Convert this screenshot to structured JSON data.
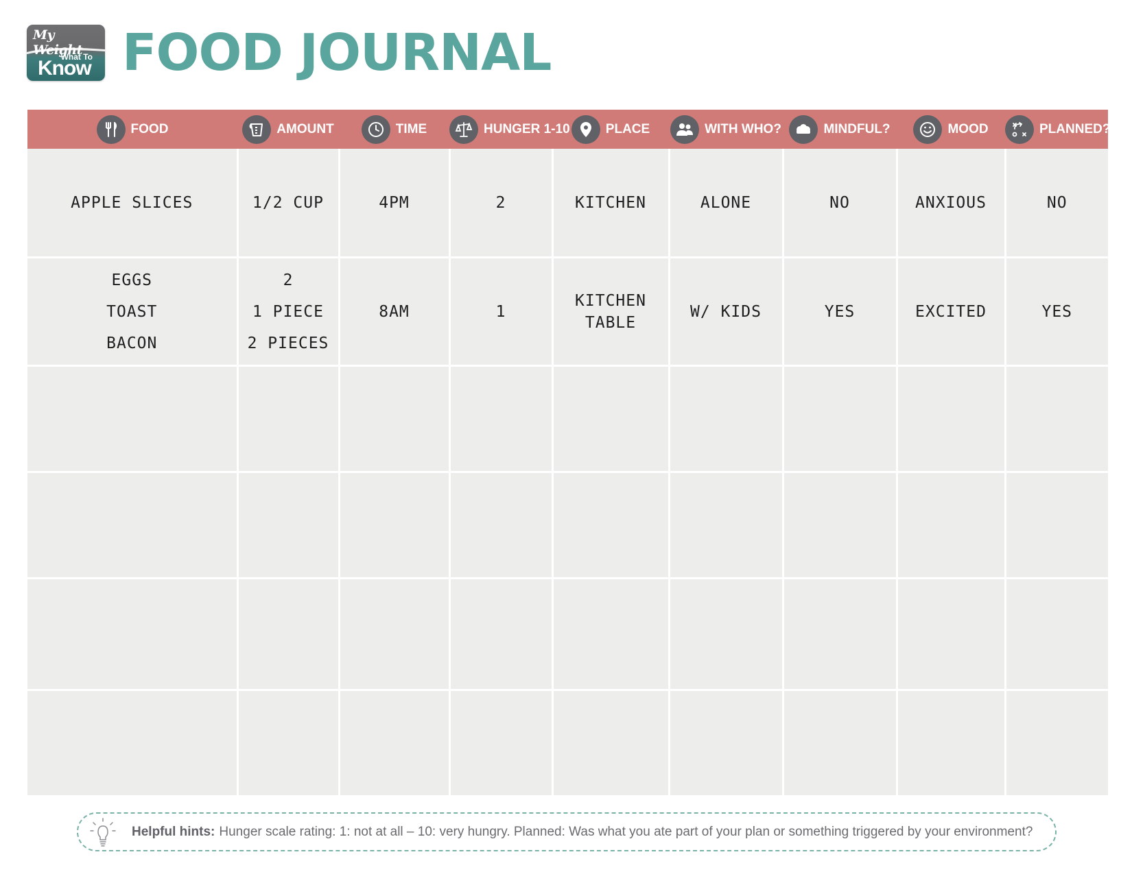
{
  "logo": {
    "line1": "My Weight",
    "line2": "What To",
    "line3": "Know"
  },
  "title": "FOOD JOURNAL",
  "columns": [
    {
      "label": "FOOD",
      "icon": "fork-knife-icon"
    },
    {
      "label": "AMOUNT",
      "icon": "measuring-cup-icon"
    },
    {
      "label": "TIME",
      "icon": "clock-icon"
    },
    {
      "label": "HUNGER 1-10",
      "icon": "scale-icon"
    },
    {
      "label": "PLACE",
      "icon": "location-pin-icon"
    },
    {
      "label": "WITH WHO?",
      "icon": "people-icon"
    },
    {
      "label": "MINDFUL?",
      "icon": "brain-icon"
    },
    {
      "label": "MOOD",
      "icon": "smiley-icon"
    },
    {
      "label": "PLANNED?",
      "icon": "strategy-icon"
    }
  ],
  "rows": [
    {
      "food": [
        "APPLE SLICES"
      ],
      "amount": [
        "1/2 CUP"
      ],
      "time": "4PM",
      "hunger": "2",
      "place": [
        "KITCHEN"
      ],
      "with_who": "ALONE",
      "mindful": "NO",
      "mood": "ANXIOUS",
      "planned": "NO"
    },
    {
      "food": [
        "EGGS",
        "TOAST",
        "BACON"
      ],
      "amount": [
        "2",
        "1 PIECE",
        "2 PIECES"
      ],
      "time": "8AM",
      "hunger": "1",
      "place": [
        "KITCHEN",
        "TABLE"
      ],
      "with_who": "W/ KIDS",
      "mindful": "YES",
      "mood": "EXCITED",
      "planned": "YES"
    }
  ],
  "hints": {
    "label": "Helpful hints:",
    "text": "Hunger scale rating: 1: not at all – 10: very hungry. Planned: Was what you ate part of your plan or something triggered by your environment?"
  },
  "colors": {
    "title": "#5aa59d",
    "header_bg": "#d17b78",
    "cell_bg": "#ededec",
    "icon_bg": "#5f6166",
    "hint_border": "#79b2a7"
  }
}
